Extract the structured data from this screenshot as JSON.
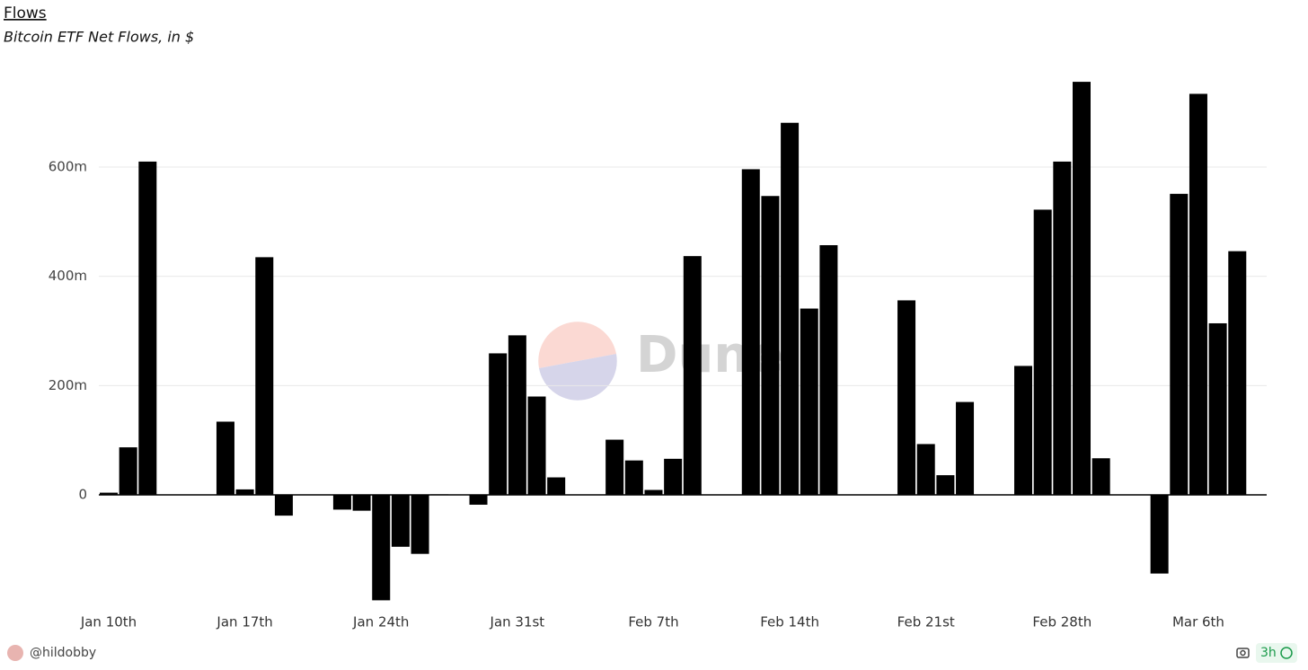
{
  "chart_data": {
    "type": "bar",
    "title": "Flows",
    "subtitle": "Bitcoin ETF Net Flows, in $",
    "categories": [
      "Jan 10th",
      null,
      null,
      null,
      null,
      null,
      null,
      "Jan 17th",
      null,
      null,
      null,
      null,
      null,
      null,
      "Jan 24th",
      null,
      null,
      null,
      null,
      null,
      null,
      "Jan 31st",
      null,
      null,
      null,
      null,
      null,
      null,
      "Feb 7th",
      null,
      null,
      null,
      null,
      null,
      null,
      "Feb 14th",
      null,
      null,
      null,
      null,
      null,
      null,
      "Feb 21st",
      null,
      null,
      null,
      null,
      null,
      null,
      "Feb 28th",
      null,
      null,
      null,
      null,
      null,
      null,
      "Mar 6th",
      null,
      null
    ],
    "values": [
      4,
      87,
      610,
      null,
      null,
      null,
      134,
      10,
      435,
      -38,
      null,
      null,
      -27,
      -29,
      -193,
      -95,
      -108,
      1,
      null,
      -18,
      259,
      292,
      180,
      32,
      null,
      null,
      101,
      63,
      9,
      66,
      437,
      null,
      null,
      596,
      547,
      681,
      341,
      457,
      null,
      null,
      null,
      356,
      93,
      36,
      170,
      null,
      null,
      236,
      522,
      610,
      756,
      67,
      null,
      null,
      -144,
      551,
      734,
      314,
      446
    ],
    "color": "#000000",
    "ylim": [
      -200,
      780
    ],
    "yticks": [
      {
        "value": 0,
        "label": "0"
      },
      {
        "value": 200,
        "label": "200m"
      },
      {
        "value": 400,
        "label": "400m"
      },
      {
        "value": 600,
        "label": "600m"
      }
    ],
    "grid": true,
    "watermark": "Dune"
  },
  "footer": {
    "author": "@hildobby",
    "age": "3h"
  }
}
